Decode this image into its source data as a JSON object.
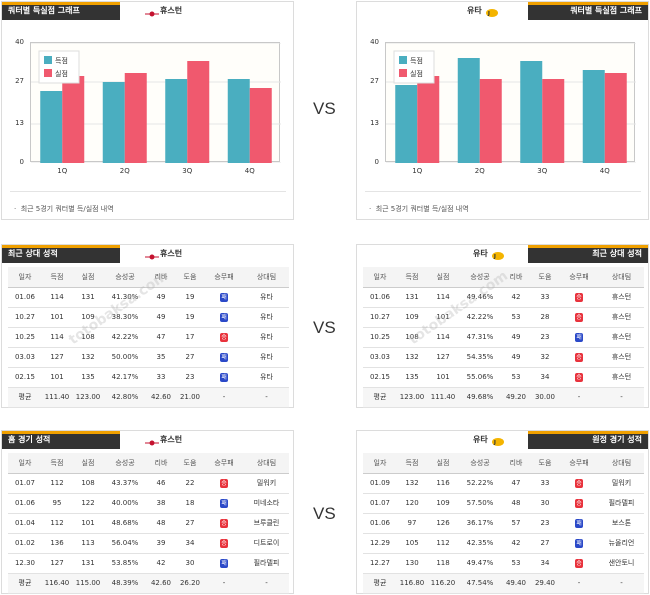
{
  "vs": "VS",
  "colors": {
    "scored": "#4aaec0",
    "allowed": "#f0596e"
  },
  "chart_left": {
    "title": "쿼터별 득실점 그래프",
    "team": "휴스턴",
    "note": "최근 5경기 쿼터별 득/실점 내역",
    "chart_data": {
      "type": "bar",
      "categories": [
        "1Q",
        "2Q",
        "3Q",
        "4Q"
      ],
      "series": [
        {
          "name": "득점",
          "values": [
            24,
            27,
            28,
            28
          ]
        },
        {
          "name": "실점",
          "values": [
            29,
            30,
            34,
            25
          ]
        }
      ],
      "ylim": [
        0,
        40
      ],
      "yticks": [
        "0",
        "13",
        "27",
        "40"
      ],
      "legend": "top-left"
    }
  },
  "chart_right": {
    "title": "쿼터별 득실점 그래프",
    "team": "유타",
    "note": "최근 5경기 쿼터별 득/실점 내역",
    "chart_data": {
      "type": "bar",
      "categories": [
        "1Q",
        "2Q",
        "3Q",
        "4Q"
      ],
      "series": [
        {
          "name": "득점",
          "values": [
            26,
            35,
            34,
            31
          ]
        },
        {
          "name": "실점",
          "values": [
            29,
            28,
            28,
            30
          ]
        }
      ],
      "ylim": [
        0,
        40
      ],
      "yticks": [
        "0",
        "13",
        "27",
        "40"
      ],
      "legend": "top-left"
    }
  },
  "columns": [
    "일자",
    "득점",
    "실점",
    "승성공",
    "리바",
    "도움",
    "승무패",
    "상대팀"
  ],
  "h2h_left": {
    "title": "최근 상대 성적",
    "team": "휴스턴",
    "rows": [
      {
        "cells": [
          "01.06",
          "114",
          "131",
          "41.30%",
          "49",
          "19"
        ],
        "result": "패",
        "win": false,
        "opp": "유타"
      },
      {
        "cells": [
          "10.27",
          "101",
          "109",
          "38.30%",
          "49",
          "19"
        ],
        "result": "패",
        "win": false,
        "opp": "유타"
      },
      {
        "cells": [
          "10.25",
          "114",
          "108",
          "42.22%",
          "47",
          "17"
        ],
        "result": "승",
        "win": true,
        "opp": "유타"
      },
      {
        "cells": [
          "03.03",
          "127",
          "132",
          "50.00%",
          "35",
          "27"
        ],
        "result": "패",
        "win": false,
        "opp": "유타"
      },
      {
        "cells": [
          "02.15",
          "101",
          "135",
          "42.17%",
          "33",
          "23"
        ],
        "result": "패",
        "win": false,
        "opp": "유타"
      }
    ],
    "avg": [
      "평균",
      "111.40",
      "123.00",
      "42.80%",
      "42.60",
      "21.00",
      "-",
      "-"
    ]
  },
  "h2h_right": {
    "title": "최근 상대 성적",
    "team": "유타",
    "rows": [
      {
        "cells": [
          "01.06",
          "131",
          "114",
          "49.46%",
          "42",
          "33"
        ],
        "result": "승",
        "win": true,
        "opp": "휴스턴"
      },
      {
        "cells": [
          "10.27",
          "109",
          "101",
          "42.22%",
          "53",
          "28"
        ],
        "result": "승",
        "win": true,
        "opp": "휴스턴"
      },
      {
        "cells": [
          "10.25",
          "108",
          "114",
          "47.31%",
          "49",
          "23"
        ],
        "result": "패",
        "win": false,
        "opp": "휴스턴"
      },
      {
        "cells": [
          "03.03",
          "132",
          "127",
          "54.35%",
          "49",
          "32"
        ],
        "result": "승",
        "win": true,
        "opp": "휴스턴"
      },
      {
        "cells": [
          "02.15",
          "135",
          "101",
          "55.06%",
          "53",
          "34"
        ],
        "result": "승",
        "win": true,
        "opp": "휴스턴"
      }
    ],
    "avg": [
      "평균",
      "123.00",
      "111.40",
      "49.68%",
      "49.20",
      "30.00",
      "-",
      "-"
    ]
  },
  "home_left": {
    "title": "홈 경기 성적",
    "team": "휴스턴",
    "rows": [
      {
        "cells": [
          "01.07",
          "112",
          "108",
          "43.37%",
          "46",
          "22"
        ],
        "result": "승",
        "win": true,
        "opp": "밀워키"
      },
      {
        "cells": [
          "01.06",
          "95",
          "122",
          "40.00%",
          "38",
          "18"
        ],
        "result": "패",
        "win": false,
        "opp": "미네소타"
      },
      {
        "cells": [
          "01.04",
          "112",
          "101",
          "48.68%",
          "48",
          "27"
        ],
        "result": "승",
        "win": true,
        "opp": "브루클린"
      },
      {
        "cells": [
          "01.02",
          "136",
          "113",
          "56.04%",
          "39",
          "34"
        ],
        "result": "승",
        "win": true,
        "opp": "디트로이"
      },
      {
        "cells": [
          "12.30",
          "127",
          "131",
          "53.85%",
          "42",
          "30"
        ],
        "result": "패",
        "win": false,
        "opp": "필라델피"
      }
    ],
    "avg": [
      "평균",
      "116.40",
      "115.00",
      "48.39%",
      "42.60",
      "26.20",
      "-",
      "-"
    ]
  },
  "away_right": {
    "title": "원정 경기 성적",
    "team": "유타",
    "rows": [
      {
        "cells": [
          "01.09",
          "132",
          "116",
          "52.22%",
          "47",
          "33"
        ],
        "result": "승",
        "win": true,
        "opp": "밀워키"
      },
      {
        "cells": [
          "01.07",
          "120",
          "109",
          "57.50%",
          "48",
          "30"
        ],
        "result": "승",
        "win": true,
        "opp": "필라델피"
      },
      {
        "cells": [
          "01.06",
          "97",
          "126",
          "36.17%",
          "57",
          "23"
        ],
        "result": "패",
        "win": false,
        "opp": "보스톤"
      },
      {
        "cells": [
          "12.29",
          "105",
          "112",
          "42.35%",
          "42",
          "27"
        ],
        "result": "패",
        "win": false,
        "opp": "뉴올리언"
      },
      {
        "cells": [
          "12.27",
          "130",
          "118",
          "49.47%",
          "53",
          "34"
        ],
        "result": "승",
        "win": true,
        "opp": "샌안토니"
      }
    ],
    "avg": [
      "평균",
      "116.80",
      "116.20",
      "47.54%",
      "49.40",
      "29.40",
      "-",
      "-"
    ]
  },
  "watermark": "토토박사 totobaksa.com"
}
